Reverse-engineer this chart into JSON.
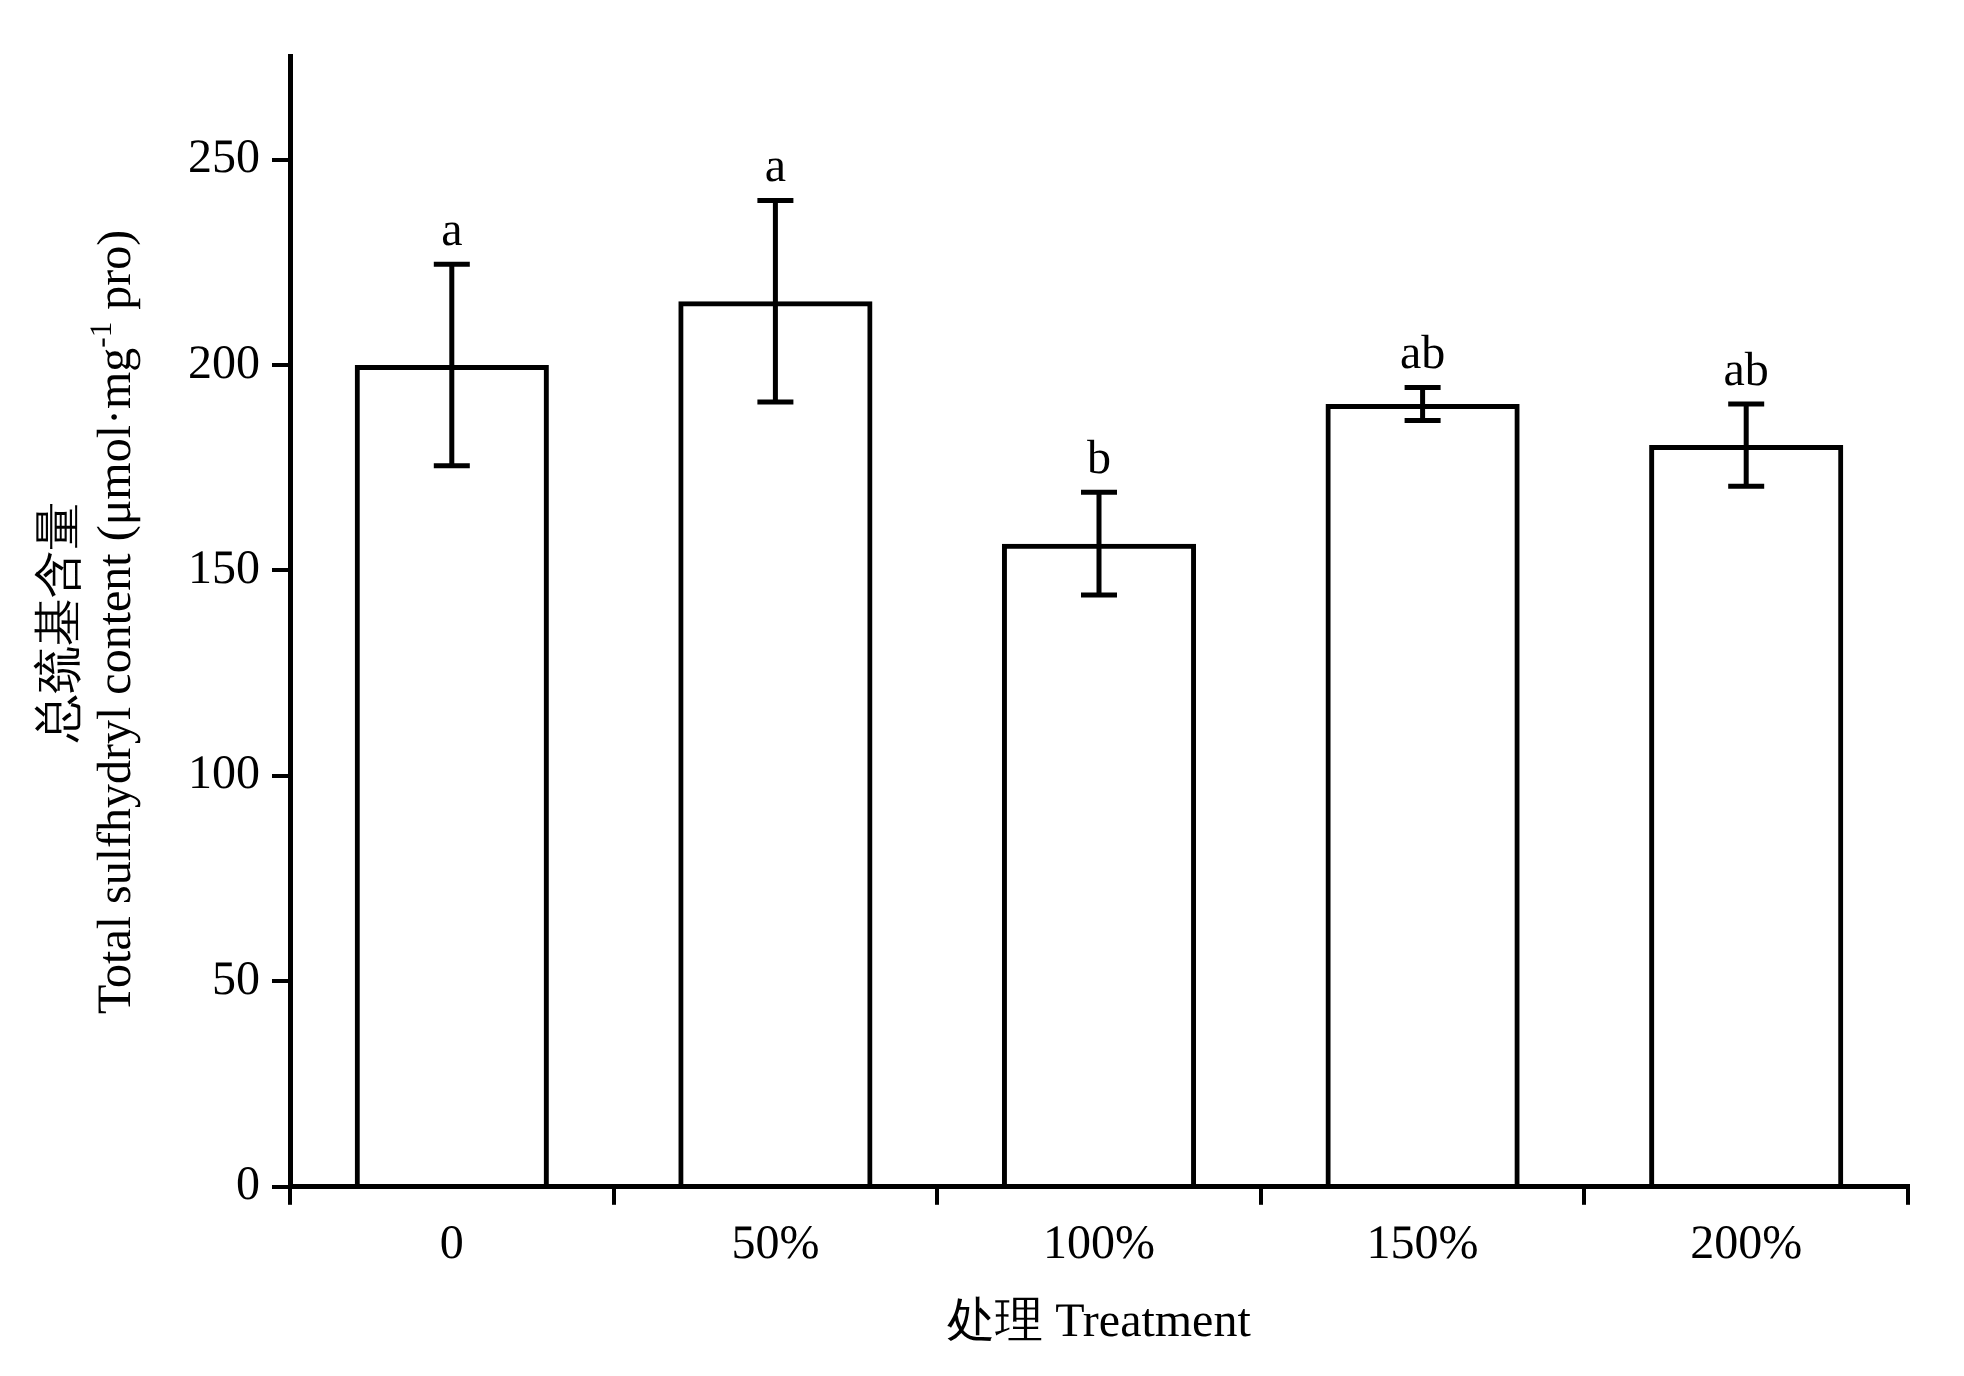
{
  "chart_data": {
    "type": "bar",
    "xlabel": "处理 Treatment",
    "ylabel": "总巯基含量\nTotal sulfhydryl content (μmol·mg$^{-1}$ pro)",
    "categories": [
      "0",
      "50%",
      "100%",
      "150%",
      "200%"
    ],
    "values": [
      200,
      215.5,
      156.5,
      190.5,
      180.5
    ],
    "errors": [
      24.5,
      24.5,
      12.5,
      4,
      10
    ],
    "color": "#000000",
    "ylim": [
      0,
      275
    ],
    "yticks": [
      0,
      50,
      100,
      150,
      200,
      250
    ],
    "grid": false,
    "legend": false,
    "annotations": [
      {
        "text": "a",
        "x": "0",
        "y": 224.5
      },
      {
        "text": "a",
        "x": "50%",
        "y": 240
      },
      {
        "text": "b",
        "x": "100%",
        "y": 169
      },
      {
        "text": "ab",
        "x": "150%",
        "y": 194.5
      },
      {
        "text": "ab",
        "x": "200%",
        "y": 190.5
      }
    ]
  }
}
